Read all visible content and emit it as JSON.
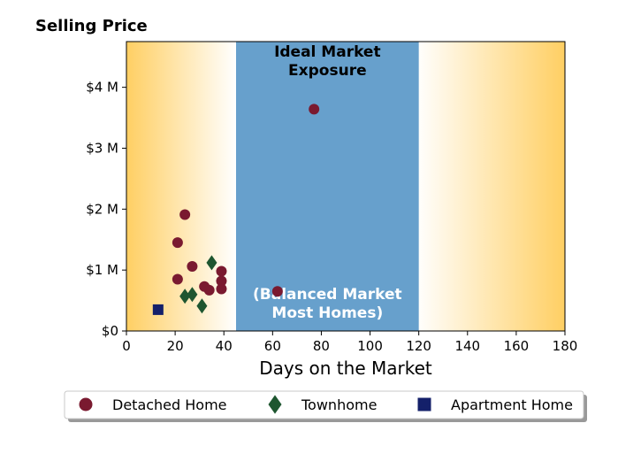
{
  "chart_data": {
    "type": "scatter",
    "title": "Selling Price",
    "xlabel": "Days on the Market",
    "ylabel": "",
    "xlim": [
      0,
      180
    ],
    "ylim": [
      0,
      4.75
    ],
    "x_ticks": [
      0,
      20,
      40,
      60,
      80,
      100,
      120,
      140,
      160,
      180
    ],
    "x_tick_labels": [
      "0",
      "20",
      "40",
      "60",
      "80",
      "100",
      "120",
      "140",
      "160",
      "180"
    ],
    "y_ticks": [
      0,
      1,
      2,
      3,
      4
    ],
    "y_tick_labels": [
      "$0",
      "$1 M",
      "$2 M",
      "$3 M",
      "$4 M"
    ],
    "y_unit": "millions of dollars",
    "grid": false,
    "legend_position": "bottom",
    "bands": [
      {
        "x_from": 45,
        "x_to": 120,
        "color": "#67a0cc",
        "label_top": [
          "Ideal Market",
          "Exposure"
        ],
        "label_bottom": [
          "(Balanced Market",
          "Most Homes)"
        ]
      }
    ],
    "background_gradient": {
      "edge_color": "#ffcf63",
      "center_color": "#ffffff"
    },
    "series": [
      {
        "name": "Detached Home",
        "marker": "circle",
        "color": "#7a1a30",
        "points": [
          [
            21,
            0.85
          ],
          [
            21,
            1.45
          ],
          [
            24,
            1.91
          ],
          [
            27,
            1.06
          ],
          [
            32,
            0.73
          ],
          [
            34,
            0.67
          ],
          [
            39,
            0.98
          ],
          [
            39,
            0.82
          ],
          [
            39,
            0.69
          ],
          [
            62,
            0.65
          ],
          [
            77,
            3.64
          ]
        ]
      },
      {
        "name": "Townhome",
        "marker": "diamond",
        "color": "#1e5630",
        "points": [
          [
            24,
            0.57
          ],
          [
            27,
            0.6
          ],
          [
            31,
            0.41
          ],
          [
            35,
            1.12
          ]
        ]
      },
      {
        "name": "Apartment Home",
        "marker": "square",
        "color": "#14206a",
        "points": [
          [
            13,
            0.35
          ]
        ]
      }
    ]
  }
}
